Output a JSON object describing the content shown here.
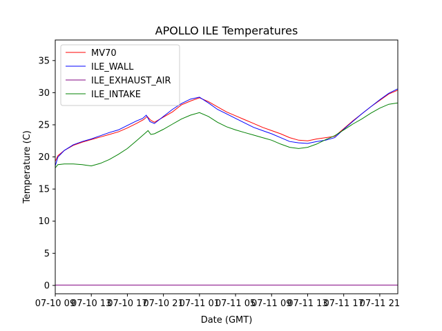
{
  "chart_data": {
    "type": "line",
    "title": "APOLLO ILE Temperatures",
    "xlabel": "Date (GMT)",
    "ylabel": "Temperature (C)",
    "xlim": [
      0,
      38
    ],
    "ylim": [
      -1.3,
      38.2
    ],
    "yticks": [
      0,
      5,
      10,
      15,
      20,
      25,
      30,
      35
    ],
    "xticks": [
      {
        "label": "07-10 09",
        "x": 0
      },
      {
        "label": "07-10 13",
        "x": 4
      },
      {
        "label": "07-10 17",
        "x": 8
      },
      {
        "label": "07-10 21",
        "x": 12
      },
      {
        "label": "07-11 01",
        "x": 16
      },
      {
        "label": "07-11 05",
        "x": 20
      },
      {
        "label": "07-11 09",
        "x": 24
      },
      {
        "label": "07-11 13",
        "x": 28
      },
      {
        "label": "07-11 17",
        "x": 32
      },
      {
        "label": "07-11 21",
        "x": 36
      }
    ],
    "legend_position": "upper-left",
    "series": [
      {
        "name": "MV70",
        "color": "#ff0000",
        "points": [
          [
            0,
            19.3
          ],
          [
            0.3,
            20.2
          ],
          [
            1,
            21
          ],
          [
            2,
            21.8
          ],
          [
            3,
            22.3
          ],
          [
            4,
            22.7
          ],
          [
            5,
            23.1
          ],
          [
            6,
            23.5
          ],
          [
            7,
            23.9
          ],
          [
            8,
            24.5
          ],
          [
            9,
            25.2
          ],
          [
            9.8,
            25.8
          ],
          [
            10.2,
            26.3
          ],
          [
            10.6,
            25.7
          ],
          [
            11,
            25.4
          ],
          [
            12,
            26.2
          ],
          [
            13,
            27
          ],
          [
            14,
            28.1
          ],
          [
            15,
            28.7
          ],
          [
            16,
            29.2
          ],
          [
            17,
            28.6
          ],
          [
            18,
            27.8
          ],
          [
            19,
            27
          ],
          [
            20,
            26.4
          ],
          [
            21,
            25.8
          ],
          [
            22,
            25.2
          ],
          [
            23,
            24.6
          ],
          [
            24,
            24.1
          ],
          [
            25,
            23.6
          ],
          [
            26,
            23
          ],
          [
            27,
            22.6
          ],
          [
            28,
            22.5
          ],
          [
            29,
            22.8
          ],
          [
            30,
            23
          ],
          [
            31,
            23.2
          ],
          [
            32,
            24.4
          ],
          [
            33,
            25.6
          ],
          [
            34,
            26.7
          ],
          [
            35,
            27.8
          ],
          [
            36,
            28.8
          ],
          [
            37,
            29.8
          ],
          [
            38,
            30.4
          ]
        ]
      },
      {
        "name": "ILE_WALL",
        "color": "#0000ff",
        "points": [
          [
            0,
            18.6
          ],
          [
            0.3,
            20
          ],
          [
            1,
            21
          ],
          [
            2,
            21.9
          ],
          [
            3,
            22.4
          ],
          [
            4,
            22.8
          ],
          [
            5,
            23.3
          ],
          [
            6,
            23.8
          ],
          [
            7,
            24.2
          ],
          [
            8,
            24.9
          ],
          [
            9,
            25.6
          ],
          [
            9.7,
            26
          ],
          [
            10.1,
            26.5
          ],
          [
            10.5,
            25.5
          ],
          [
            11,
            25.2
          ],
          [
            12,
            26.3
          ],
          [
            13,
            27.4
          ],
          [
            14,
            28.3
          ],
          [
            15,
            29
          ],
          [
            16,
            29.3
          ],
          [
            17,
            28.4
          ],
          [
            18,
            27.4
          ],
          [
            19,
            26.7
          ],
          [
            20,
            26
          ],
          [
            21,
            25.3
          ],
          [
            22,
            24.6
          ],
          [
            23,
            24.1
          ],
          [
            24,
            23.6
          ],
          [
            25,
            23
          ],
          [
            26,
            22.4
          ],
          [
            27,
            22.2
          ],
          [
            28,
            22.1
          ],
          [
            29,
            22.4
          ],
          [
            30,
            22.6
          ],
          [
            31,
            23
          ],
          [
            32,
            24.3
          ],
          [
            33,
            25.5
          ],
          [
            34,
            26.7
          ],
          [
            35,
            27.8
          ],
          [
            36,
            28.9
          ],
          [
            37,
            29.9
          ],
          [
            38,
            30.6
          ]
        ]
      },
      {
        "name": "ILE_EXHAUST_AIR",
        "color": "#800080",
        "points": [
          [
            0,
            0.05
          ],
          [
            38,
            0.05
          ]
        ]
      },
      {
        "name": "ILE_INTAKE",
        "color": "#008000",
        "points": [
          [
            0,
            18.3
          ],
          [
            0.3,
            18.8
          ],
          [
            1,
            18.9
          ],
          [
            2,
            18.9
          ],
          [
            3,
            18.8
          ],
          [
            3.5,
            18.7
          ],
          [
            4,
            18.6
          ],
          [
            5,
            19
          ],
          [
            6,
            19.6
          ],
          [
            7,
            20.4
          ],
          [
            8,
            21.3
          ],
          [
            9,
            22.5
          ],
          [
            9.9,
            23.6
          ],
          [
            10.3,
            24.1
          ],
          [
            10.6,
            23.5
          ],
          [
            11,
            23.6
          ],
          [
            12,
            24.3
          ],
          [
            13,
            25.1
          ],
          [
            14,
            25.9
          ],
          [
            15,
            26.5
          ],
          [
            16,
            26.9
          ],
          [
            17,
            26.3
          ],
          [
            18,
            25.4
          ],
          [
            19,
            24.7
          ],
          [
            20,
            24.2
          ],
          [
            21,
            23.8
          ],
          [
            22,
            23.4
          ],
          [
            23,
            23
          ],
          [
            24,
            22.6
          ],
          [
            25,
            22
          ],
          [
            26,
            21.5
          ],
          [
            27,
            21.3
          ],
          [
            28,
            21.5
          ],
          [
            29,
            22
          ],
          [
            30,
            22.7
          ],
          [
            31,
            23.3
          ],
          [
            32,
            24.2
          ],
          [
            33,
            25.1
          ],
          [
            34,
            25.9
          ],
          [
            35,
            26.8
          ],
          [
            36,
            27.6
          ],
          [
            37,
            28.2
          ],
          [
            38,
            28.4
          ]
        ]
      }
    ]
  }
}
